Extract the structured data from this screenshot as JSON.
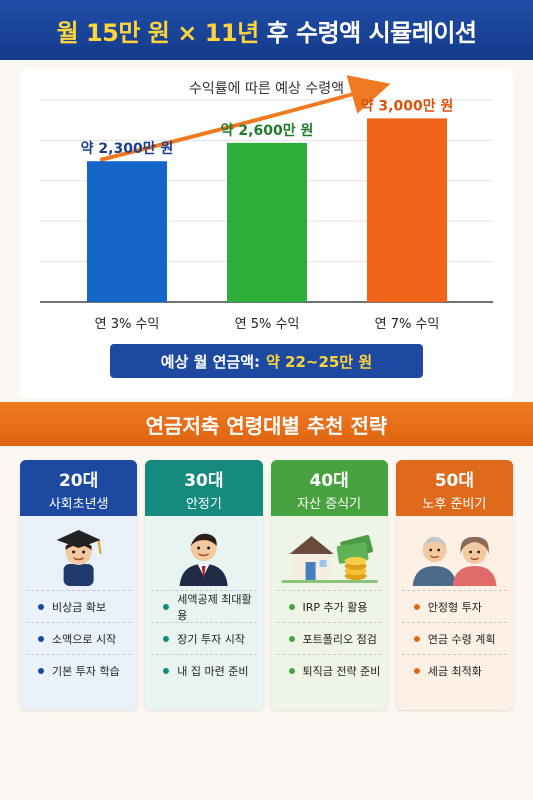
{
  "header": {
    "title_pre": "월",
    "title_highlight": "15만 원 × 11년",
    "title_post": "후 수령액 시뮬레이션"
  },
  "chart_data": {
    "type": "bar",
    "title": "수익률에 따른 예상 수령액",
    "categories": [
      "연 3% 수익",
      "연 5% 수익",
      "연 7% 수익"
    ],
    "values": [
      2300,
      2600,
      3000
    ],
    "data_labels": [
      "약 2,300만 원",
      "약 2,600만 원",
      "약 3,000만 원"
    ],
    "colors": [
      "#1565c8",
      "#2eae3a",
      "#f0651a"
    ],
    "grid": true,
    "ylim": [
      0,
      3300
    ]
  },
  "pension_banner": {
    "label": "예상 월 연금액:",
    "value": "약 22~25만 원"
  },
  "section": {
    "title": "연금저축 연령대별 추천 전략"
  },
  "cards": [
    {
      "age": "20대",
      "stage": "사회초년생",
      "items": [
        "비상금 확보",
        "소액으로 시작",
        "기본 투자 학습"
      ]
    },
    {
      "age": "30대",
      "stage": "안정기",
      "items": [
        "세액공제 최대활용",
        "장기 투자 시작",
        "내 집 마련 준비"
      ]
    },
    {
      "age": "40대",
      "stage": "자산 증식기",
      "items": [
        "IRP 추가 활용",
        "포트폴리오 점검",
        "퇴직금 전략 준비"
      ]
    },
    {
      "age": "50대",
      "stage": "노후 준비기",
      "items": [
        "안정형 투자",
        "연금 수령 계획",
        "세금 최적화"
      ]
    }
  ]
}
